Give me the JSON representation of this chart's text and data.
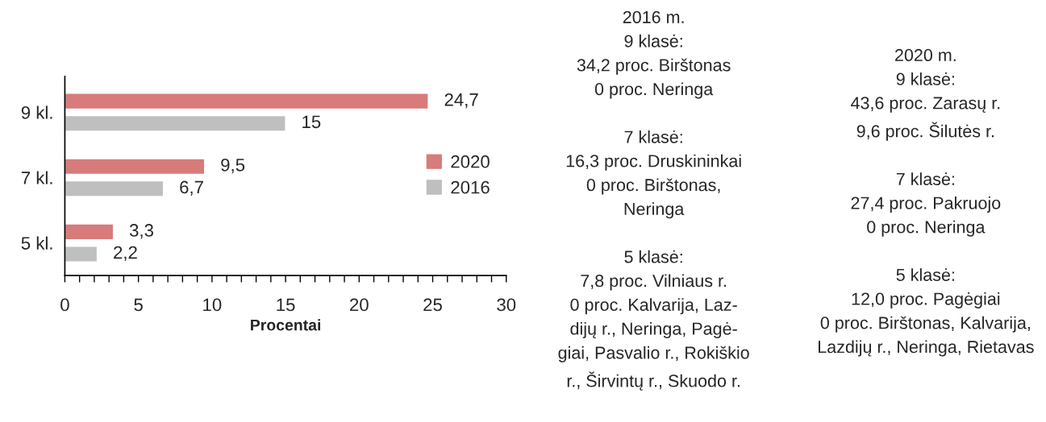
{
  "chart_data": {
    "type": "bar",
    "orientation": "horizontal",
    "categories": [
      "9 kl.",
      "7 kl.",
      "5 kl."
    ],
    "series": [
      {
        "name": "2020",
        "color": "#d77b7b",
        "values": [
          24.7,
          9.5,
          3.3
        ],
        "value_labels": [
          "24,7",
          "9,5",
          "3,3"
        ]
      },
      {
        "name": "2016",
        "color": "#bfbfbf",
        "values": [
          15,
          6.7,
          2.2
        ],
        "value_labels": [
          "15",
          "6,7",
          "2,2"
        ]
      }
    ],
    "xlabel": "Procentai",
    "xlim": [
      0,
      30
    ],
    "xticks": [
      0,
      {
        "value": 1,
        "label": null
      },
      {
        "value": 2,
        "label": null
      },
      {
        "value": 3,
        "label": null
      },
      {
        "value": 4,
        "label": null
      },
      5,
      {
        "value": 6,
        "label": null
      },
      {
        "value": 7,
        "label": null
      },
      {
        "value": 8,
        "label": null
      },
      {
        "value": 9,
        "label": null
      },
      10,
      {
        "value": 11,
        "label": null
      },
      {
        "value": 12,
        "label": null
      },
      {
        "value": 13,
        "label": null
      },
      {
        "value": 14,
        "label": null
      },
      15,
      {
        "value": 16,
        "label": null
      },
      {
        "value": 17,
        "label": null
      },
      {
        "value": 18,
        "label": null
      },
      {
        "value": 19,
        "label": null
      },
      20,
      {
        "value": 21,
        "label": null
      },
      {
        "value": 22,
        "label": null
      },
      {
        "value": 23,
        "label": null
      },
      {
        "value": 24,
        "label": null
      },
      25,
      {
        "value": 26,
        "label": null
      },
      {
        "value": 27,
        "label": null
      },
      {
        "value": 28,
        "label": null
      },
      {
        "value": 29,
        "label": null
      },
      30
    ],
    "legend": "right",
    "grid": false,
    "annotations": [
      "2016 m.\n9 klasė:\n34,2 proc. Birštonas\n0 proc. Neringa\n\n7 klasė:\n16,3 proc. Druskininkai\n0 proc. Birštonas,\nNeringa\n\n5 klasė:\n7,8 proc. Vilniaus r.\n0 proc. Kalvarija, Laz-\ndijų r., Neringa, Pagė-\ngiai, Pasvalio r., Rokiškio\nr., Širvintų r., Skuodo r.",
      "2020 m.\n9 klasė:\n43,6 proc. Zarasų r.\n9,6 proc. Šilutės r.\n\n7 klasė:\n27,4 proc. Pakruojo\n0 proc. Neringa\n\n5 klasė:\n12,0 proc. Pagėgiai\n0 proc. Birštonas, Kalvarija,\nLazdijų r., Neringa, Rietavas"
    ]
  }
}
